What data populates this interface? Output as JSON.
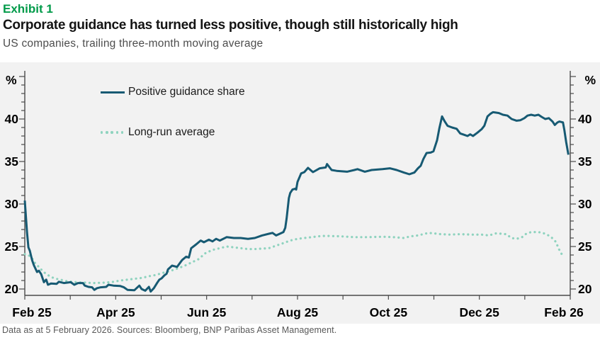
{
  "header": {
    "exhibit_label": "Exhibit 1",
    "title": "Corporate guidance has turned less positive, though still historically high",
    "subtitle": "US companies, trailing three-month moving average"
  },
  "footer": {
    "source_note": "Data as at 5 February 2026. Sources: Bloomberg, BNP Paribas Asset Management."
  },
  "colors": {
    "exhibit_green": "#009a49",
    "positive_line": "#175a73",
    "average_line": "#8fd3bf",
    "panel_bg": "#f2f2f2",
    "axis": "#4a4a4a"
  },
  "chart_data": {
    "type": "line",
    "title": "Corporate guidance has turned less positive, though still historically high",
    "subtitle": "US companies, trailing three-month moving average",
    "x_axis": {
      "unit": "months since Feb 2025",
      "range_months": [
        0,
        12
      ],
      "tick_labels": [
        "Feb 25",
        "Apr 25",
        "Jun 25",
        "Aug 25",
        "Oct 25",
        "Dec 25",
        "Feb 26"
      ],
      "minor_tick_step_months": 1
    },
    "y_axis": {
      "label": "%",
      "ticks": [
        20,
        25,
        30,
        35,
        40
      ],
      "range": [
        19.3,
        45.6
      ],
      "minor_tick_step": 1,
      "mirrored_right_axis": true
    },
    "grid": false,
    "legend_position": "top-left-inside",
    "legend": [
      {
        "name": "Positive guidance share",
        "style": "solid"
      },
      {
        "name": "Long-run average",
        "style": "dotted"
      }
    ],
    "series": [
      {
        "name": "Positive guidance share",
        "points": [
          [
            0,
            30.4
          ],
          [
            0.05,
            26.6
          ],
          [
            0.08,
            24.9
          ],
          [
            0.11,
            24.5
          ],
          [
            0.16,
            23.4
          ],
          [
            0.2,
            22.8
          ],
          [
            0.27,
            22.0
          ],
          [
            0.31,
            22.15
          ],
          [
            0.36,
            21.75
          ],
          [
            0.42,
            20.8
          ],
          [
            0.47,
            21.1
          ],
          [
            0.51,
            20.5
          ],
          [
            0.58,
            20.65
          ],
          [
            0.7,
            20.6
          ],
          [
            0.75,
            20.85
          ],
          [
            0.86,
            20.7
          ],
          [
            1.01,
            20.8
          ],
          [
            1.09,
            20.5
          ],
          [
            1.17,
            20.7
          ],
          [
            1.28,
            20.7
          ],
          [
            1.32,
            20.4
          ],
          [
            1.4,
            20.25
          ],
          [
            1.48,
            20.2
          ],
          [
            1.53,
            19.9
          ],
          [
            1.59,
            20.1
          ],
          [
            1.67,
            20.2
          ],
          [
            1.79,
            20.25
          ],
          [
            1.84,
            20.5
          ],
          [
            1.95,
            20.4
          ],
          [
            2.1,
            20.35
          ],
          [
            2.18,
            20.2
          ],
          [
            2.26,
            19.9
          ],
          [
            2.41,
            19.85
          ],
          [
            2.46,
            20.1
          ],
          [
            2.52,
            20.4
          ],
          [
            2.57,
            20.0
          ],
          [
            2.65,
            19.8
          ],
          [
            2.73,
            20.25
          ],
          [
            2.77,
            19.7
          ],
          [
            2.84,
            20.1
          ],
          [
            2.91,
            20.7
          ],
          [
            2.96,
            21.1
          ],
          [
            3.01,
            21.25
          ],
          [
            3.07,
            21.6
          ],
          [
            3.12,
            21.8
          ],
          [
            3.15,
            22.3
          ],
          [
            3.24,
            22.75
          ],
          [
            3.35,
            22.6
          ],
          [
            3.46,
            23.4
          ],
          [
            3.55,
            23.8
          ],
          [
            3.61,
            23.7
          ],
          [
            3.66,
            24.8
          ],
          [
            3.77,
            25.25
          ],
          [
            3.87,
            25.7
          ],
          [
            3.94,
            25.5
          ],
          [
            4.05,
            25.8
          ],
          [
            4.13,
            25.6
          ],
          [
            4.21,
            25.9
          ],
          [
            4.29,
            25.7
          ],
          [
            4.44,
            26.1
          ],
          [
            4.6,
            26.0
          ],
          [
            4.75,
            26.0
          ],
          [
            4.91,
            25.9
          ],
          [
            5.06,
            26.0
          ],
          [
            5.22,
            26.3
          ],
          [
            5.37,
            26.5
          ],
          [
            5.45,
            26.6
          ],
          [
            5.53,
            26.3
          ],
          [
            5.61,
            26.5
          ],
          [
            5.69,
            26.7
          ],
          [
            5.73,
            27.2
          ],
          [
            5.76,
            28.3
          ],
          [
            5.81,
            30.7
          ],
          [
            5.84,
            31.3
          ],
          [
            5.89,
            31.7
          ],
          [
            5.95,
            31.8
          ],
          [
            5.97,
            31.7
          ],
          [
            6.0,
            32.6
          ],
          [
            6.08,
            33.6
          ],
          [
            6.15,
            33.75
          ],
          [
            6.23,
            34.25
          ],
          [
            6.34,
            33.75
          ],
          [
            6.49,
            34.2
          ],
          [
            6.62,
            34.3
          ],
          [
            6.65,
            34.7
          ],
          [
            6.75,
            34.0
          ],
          [
            6.86,
            33.9
          ],
          [
            7.09,
            33.8
          ],
          [
            7.25,
            34.0
          ],
          [
            7.32,
            34.1
          ],
          [
            7.48,
            33.8
          ],
          [
            7.63,
            34.0
          ],
          [
            7.87,
            34.1
          ],
          [
            8.03,
            34.2
          ],
          [
            8.18,
            34.0
          ],
          [
            8.34,
            33.7
          ],
          [
            8.46,
            33.5
          ],
          [
            8.57,
            33.7
          ],
          [
            8.65,
            34.2
          ],
          [
            8.71,
            34.5
          ],
          [
            8.77,
            35.3
          ],
          [
            8.84,
            36.0
          ],
          [
            8.93,
            36.05
          ],
          [
            8.99,
            36.2
          ],
          [
            9.07,
            37.5
          ],
          [
            9.12,
            38.9
          ],
          [
            9.18,
            40.3
          ],
          [
            9.24,
            39.7
          ],
          [
            9.3,
            39.2
          ],
          [
            9.4,
            39.0
          ],
          [
            9.5,
            38.85
          ],
          [
            9.58,
            38.3
          ],
          [
            9.66,
            38.15
          ],
          [
            9.74,
            38.0
          ],
          [
            9.8,
            38.2
          ],
          [
            9.86,
            38.0
          ],
          [
            9.96,
            38.4
          ],
          [
            10.05,
            38.8
          ],
          [
            10.11,
            39.2
          ],
          [
            10.18,
            40.3
          ],
          [
            10.24,
            40.6
          ],
          [
            10.3,
            40.8
          ],
          [
            10.37,
            40.75
          ],
          [
            10.43,
            40.7
          ],
          [
            10.52,
            40.5
          ],
          [
            10.62,
            40.4
          ],
          [
            10.71,
            40.0
          ],
          [
            10.82,
            39.8
          ],
          [
            10.9,
            39.85
          ],
          [
            10.99,
            40.1
          ],
          [
            11.06,
            40.4
          ],
          [
            11.14,
            40.5
          ],
          [
            11.22,
            40.4
          ],
          [
            11.3,
            40.5
          ],
          [
            11.37,
            40.25
          ],
          [
            11.45,
            40.0
          ],
          [
            11.53,
            40.1
          ],
          [
            11.61,
            39.7
          ],
          [
            11.66,
            39.3
          ],
          [
            11.72,
            39.6
          ],
          [
            11.76,
            39.7
          ],
          [
            11.84,
            39.6
          ],
          [
            11.87,
            38.7
          ],
          [
            11.91,
            37.3
          ],
          [
            11.96,
            35.8
          ]
        ]
      },
      {
        "name": "Long-run average",
        "points": [
          [
            0,
            24.1
          ],
          [
            0.08,
            24.0
          ],
          [
            0.16,
            23.6
          ],
          [
            0.2,
            23.2
          ],
          [
            0.28,
            22.75
          ],
          [
            0.36,
            22.3
          ],
          [
            0.44,
            21.9
          ],
          [
            0.55,
            21.5
          ],
          [
            0.65,
            21.25
          ],
          [
            0.78,
            21.1
          ],
          [
            0.94,
            20.9
          ],
          [
            1.12,
            20.8
          ],
          [
            1.32,
            20.75
          ],
          [
            1.53,
            20.7
          ],
          [
            1.75,
            20.75
          ],
          [
            1.9,
            20.8
          ],
          [
            2.1,
            21.0
          ],
          [
            2.26,
            21.1
          ],
          [
            2.41,
            21.2
          ],
          [
            2.57,
            21.3
          ],
          [
            2.73,
            21.5
          ],
          [
            2.88,
            21.65
          ],
          [
            3.04,
            21.9
          ],
          [
            3.19,
            22.1
          ],
          [
            3.35,
            22.4
          ],
          [
            3.5,
            22.7
          ],
          [
            3.66,
            23.1
          ],
          [
            3.82,
            23.5
          ],
          [
            3.97,
            24.2
          ],
          [
            4.13,
            24.6
          ],
          [
            4.29,
            24.8
          ],
          [
            4.44,
            25.0
          ],
          [
            4.6,
            24.9
          ],
          [
            4.75,
            24.8
          ],
          [
            4.91,
            24.7
          ],
          [
            5.06,
            24.7
          ],
          [
            5.22,
            24.75
          ],
          [
            5.37,
            24.8
          ],
          [
            5.53,
            25.1
          ],
          [
            5.69,
            25.4
          ],
          [
            5.84,
            25.7
          ],
          [
            6.0,
            25.9
          ],
          [
            6.15,
            26.0
          ],
          [
            6.31,
            26.1
          ],
          [
            6.46,
            26.2
          ],
          [
            6.62,
            26.25
          ],
          [
            6.93,
            26.2
          ],
          [
            7.25,
            26.1
          ],
          [
            7.56,
            26.1
          ],
          [
            7.87,
            26.15
          ],
          [
            8.11,
            26.1
          ],
          [
            8.34,
            26.0
          ],
          [
            8.49,
            26.2
          ],
          [
            8.65,
            26.3
          ],
          [
            8.8,
            26.5
          ],
          [
            8.88,
            26.6
          ],
          [
            8.99,
            26.55
          ],
          [
            9.15,
            26.45
          ],
          [
            9.35,
            26.4
          ],
          [
            9.58,
            26.45
          ],
          [
            9.82,
            26.4
          ],
          [
            10.05,
            26.4
          ],
          [
            10.21,
            26.3
          ],
          [
            10.37,
            26.55
          ],
          [
            10.49,
            26.5
          ],
          [
            10.59,
            26.45
          ],
          [
            10.71,
            26.0
          ],
          [
            10.82,
            25.9
          ],
          [
            10.94,
            26.1
          ],
          [
            11.03,
            26.5
          ],
          [
            11.14,
            26.7
          ],
          [
            11.26,
            26.7
          ],
          [
            11.37,
            26.65
          ],
          [
            11.49,
            26.4
          ],
          [
            11.58,
            26.1
          ],
          [
            11.64,
            25.8
          ],
          [
            11.69,
            25.5
          ],
          [
            11.74,
            24.8
          ],
          [
            11.8,
            24.2
          ],
          [
            11.84,
            23.9
          ]
        ]
      }
    ]
  }
}
